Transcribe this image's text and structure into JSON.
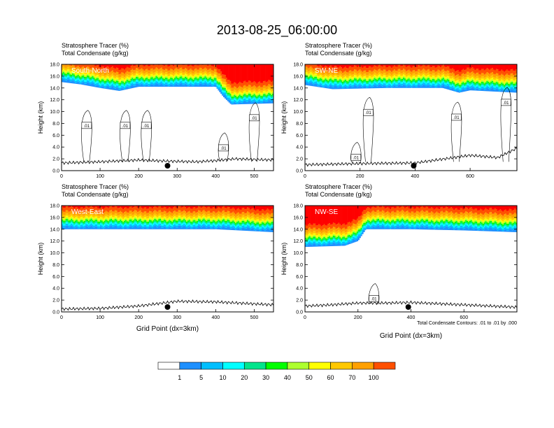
{
  "figure_title": "2013-08-25_06:00:00",
  "panel_left_label": "Stratosphere Tracer   (%)",
  "panel_left_label2": "Total Condensate   (g/kg)",
  "x_axis_title": "Grid Point (dx=3km)",
  "y_axis_title": "Height (km)",
  "contour_note": "Total Condensate Contours: .01 to .01 by .000",
  "contour_label": ".01",
  "colorbar": {
    "labels": [
      "1",
      "5",
      "10",
      "20",
      "30",
      "40",
      "50",
      "60",
      "70",
      "100"
    ],
    "colors": [
      "#ffffff",
      "#1e90ff",
      "#00bfff",
      "#00ffff",
      "#00e58c",
      "#00ff00",
      "#adff2f",
      "#ffff00",
      "#ffc800",
      "#ffa000",
      "#ff5000",
      "#ff0000"
    ]
  },
  "chart_data": [
    {
      "type": "contour-section",
      "panel": "South-North",
      "title_left": "Stratosphere Tracer   (%)",
      "subtitle_left": "Total Condensate   (g/kg)",
      "region_label": "South-North",
      "xlabel": "",
      "ylabel": "Height (km)",
      "xlim": [
        0,
        550
      ],
      "ylim": [
        0,
        18
      ],
      "xticks": [
        "0",
        "100",
        "200",
        "300",
        "400",
        "500"
      ],
      "yticks": [
        "0.0",
        "2.0",
        "4.0",
        "6.0",
        "8.0",
        "10.0",
        "12.0",
        "14.0",
        "16.0",
        "18.0"
      ],
      "tracer_base_profile": [
        [
          0,
          15.0
        ],
        [
          50,
          14.6
        ],
        [
          100,
          14.0
        ],
        [
          150,
          13.5
        ],
        [
          200,
          14.2
        ],
        [
          300,
          14.2
        ],
        [
          400,
          14.2
        ],
        [
          420,
          12.5
        ],
        [
          440,
          11.2
        ],
        [
          550,
          11.4
        ]
      ],
      "terrain": [
        [
          0,
          1.3
        ],
        [
          50,
          1.4
        ],
        [
          100,
          1.5
        ],
        [
          200,
          1.8
        ],
        [
          280,
          1.6
        ],
        [
          350,
          1.5
        ],
        [
          400,
          1.7
        ],
        [
          450,
          2.0
        ],
        [
          550,
          1.8
        ]
      ],
      "marker_x": 275,
      "contour_label_positions": [
        [
          65,
          7.6
        ],
        [
          165,
          7.6
        ],
        [
          220,
          7.6
        ],
        [
          420,
          3.8
        ],
        [
          500,
          8.9
        ]
      ]
    },
    {
      "type": "contour-section",
      "panel": "SW-NE",
      "title_left": "Stratosphere Tracer   (%)",
      "subtitle_left": "Total Condensate   (g/kg)",
      "region_label": "SW-NE",
      "xlabel": "",
      "ylabel": "Height (km)",
      "xlim": [
        0,
        770
      ],
      "ylim": [
        0,
        18
      ],
      "xticks": [
        "0",
        "200",
        "400",
        "600"
      ],
      "yticks": [
        "0.0",
        "2.0",
        "4.0",
        "6.0",
        "8.0",
        "10.0",
        "12.0",
        "14.0",
        "16.0",
        "18.0"
      ],
      "tracer_base_profile": [
        [
          0,
          14.5
        ],
        [
          100,
          13.8
        ],
        [
          300,
          14.0
        ],
        [
          500,
          14.0
        ],
        [
          560,
          13.2
        ],
        [
          600,
          13.6
        ],
        [
          770,
          13.2
        ]
      ],
      "terrain": [
        [
          0,
          1.0
        ],
        [
          100,
          1.1
        ],
        [
          200,
          1.2
        ],
        [
          400,
          1.3
        ],
        [
          600,
          2.6
        ],
        [
          700,
          2.2
        ],
        [
          770,
          3.8
        ]
      ],
      "marker_x": 395,
      "contour_label_positions": [
        [
          230,
          9.8
        ],
        [
          550,
          9.0
        ],
        [
          730,
          11.5
        ],
        [
          185,
          2.2
        ]
      ]
    },
    {
      "type": "contour-section",
      "panel": "West-East",
      "title_left": "Stratosphere Tracer   (%)",
      "subtitle_left": "Total Condensate   (g/kg)",
      "region_label": "West-East",
      "xlabel": "Grid Point (dx=3km)",
      "ylabel": "Height (km)",
      "xlim": [
        0,
        550
      ],
      "ylim": [
        0,
        18
      ],
      "xticks": [
        "0",
        "100",
        "200",
        "300",
        "400",
        "500"
      ],
      "yticks": [
        "0.0",
        "2.0",
        "4.0",
        "6.0",
        "8.0",
        "10.0",
        "12.0",
        "14.0",
        "16.0",
        "18.0"
      ],
      "tracer_base_profile": [
        [
          0,
          14.0
        ],
        [
          200,
          14.0
        ],
        [
          400,
          14.0
        ],
        [
          550,
          13.5
        ]
      ],
      "terrain": [
        [
          0,
          0.5
        ],
        [
          100,
          0.6
        ],
        [
          200,
          1.0
        ],
        [
          300,
          1.8
        ],
        [
          400,
          1.7
        ],
        [
          550,
          1.2
        ]
      ],
      "marker_x": 275
    },
    {
      "type": "contour-section",
      "panel": "NW-SE",
      "title_left": "Stratosphere Tracer   (%)",
      "subtitle_left": "Total Condensate   (g/kg)",
      "region_label": "NW-SE",
      "xlabel": "Grid Point (dx=3km)",
      "ylabel": "Height (km)",
      "xlim": [
        0,
        800
      ],
      "ylim": [
        0,
        18
      ],
      "xticks": [
        "0",
        "200",
        "400",
        "600"
      ],
      "yticks": [
        "0.0",
        "2.0",
        "4.0",
        "6.0",
        "8.0",
        "10.0",
        "12.0",
        "14.0",
        "16.0",
        "18.0"
      ],
      "tracer_base_profile": [
        [
          0,
          11.0
        ],
        [
          150,
          11.2
        ],
        [
          200,
          12.0
        ],
        [
          230,
          14.0
        ],
        [
          400,
          14.0
        ],
        [
          600,
          13.8
        ],
        [
          800,
          13.5
        ]
      ],
      "terrain": [
        [
          0,
          1.0
        ],
        [
          100,
          1.2
        ],
        [
          200,
          1.5
        ],
        [
          300,
          1.5
        ],
        [
          400,
          1.6
        ],
        [
          600,
          1.2
        ],
        [
          800,
          0.8
        ]
      ],
      "marker_x": 390,
      "contour_label_positions": [
        [
          260,
          2.2
        ]
      ]
    }
  ]
}
